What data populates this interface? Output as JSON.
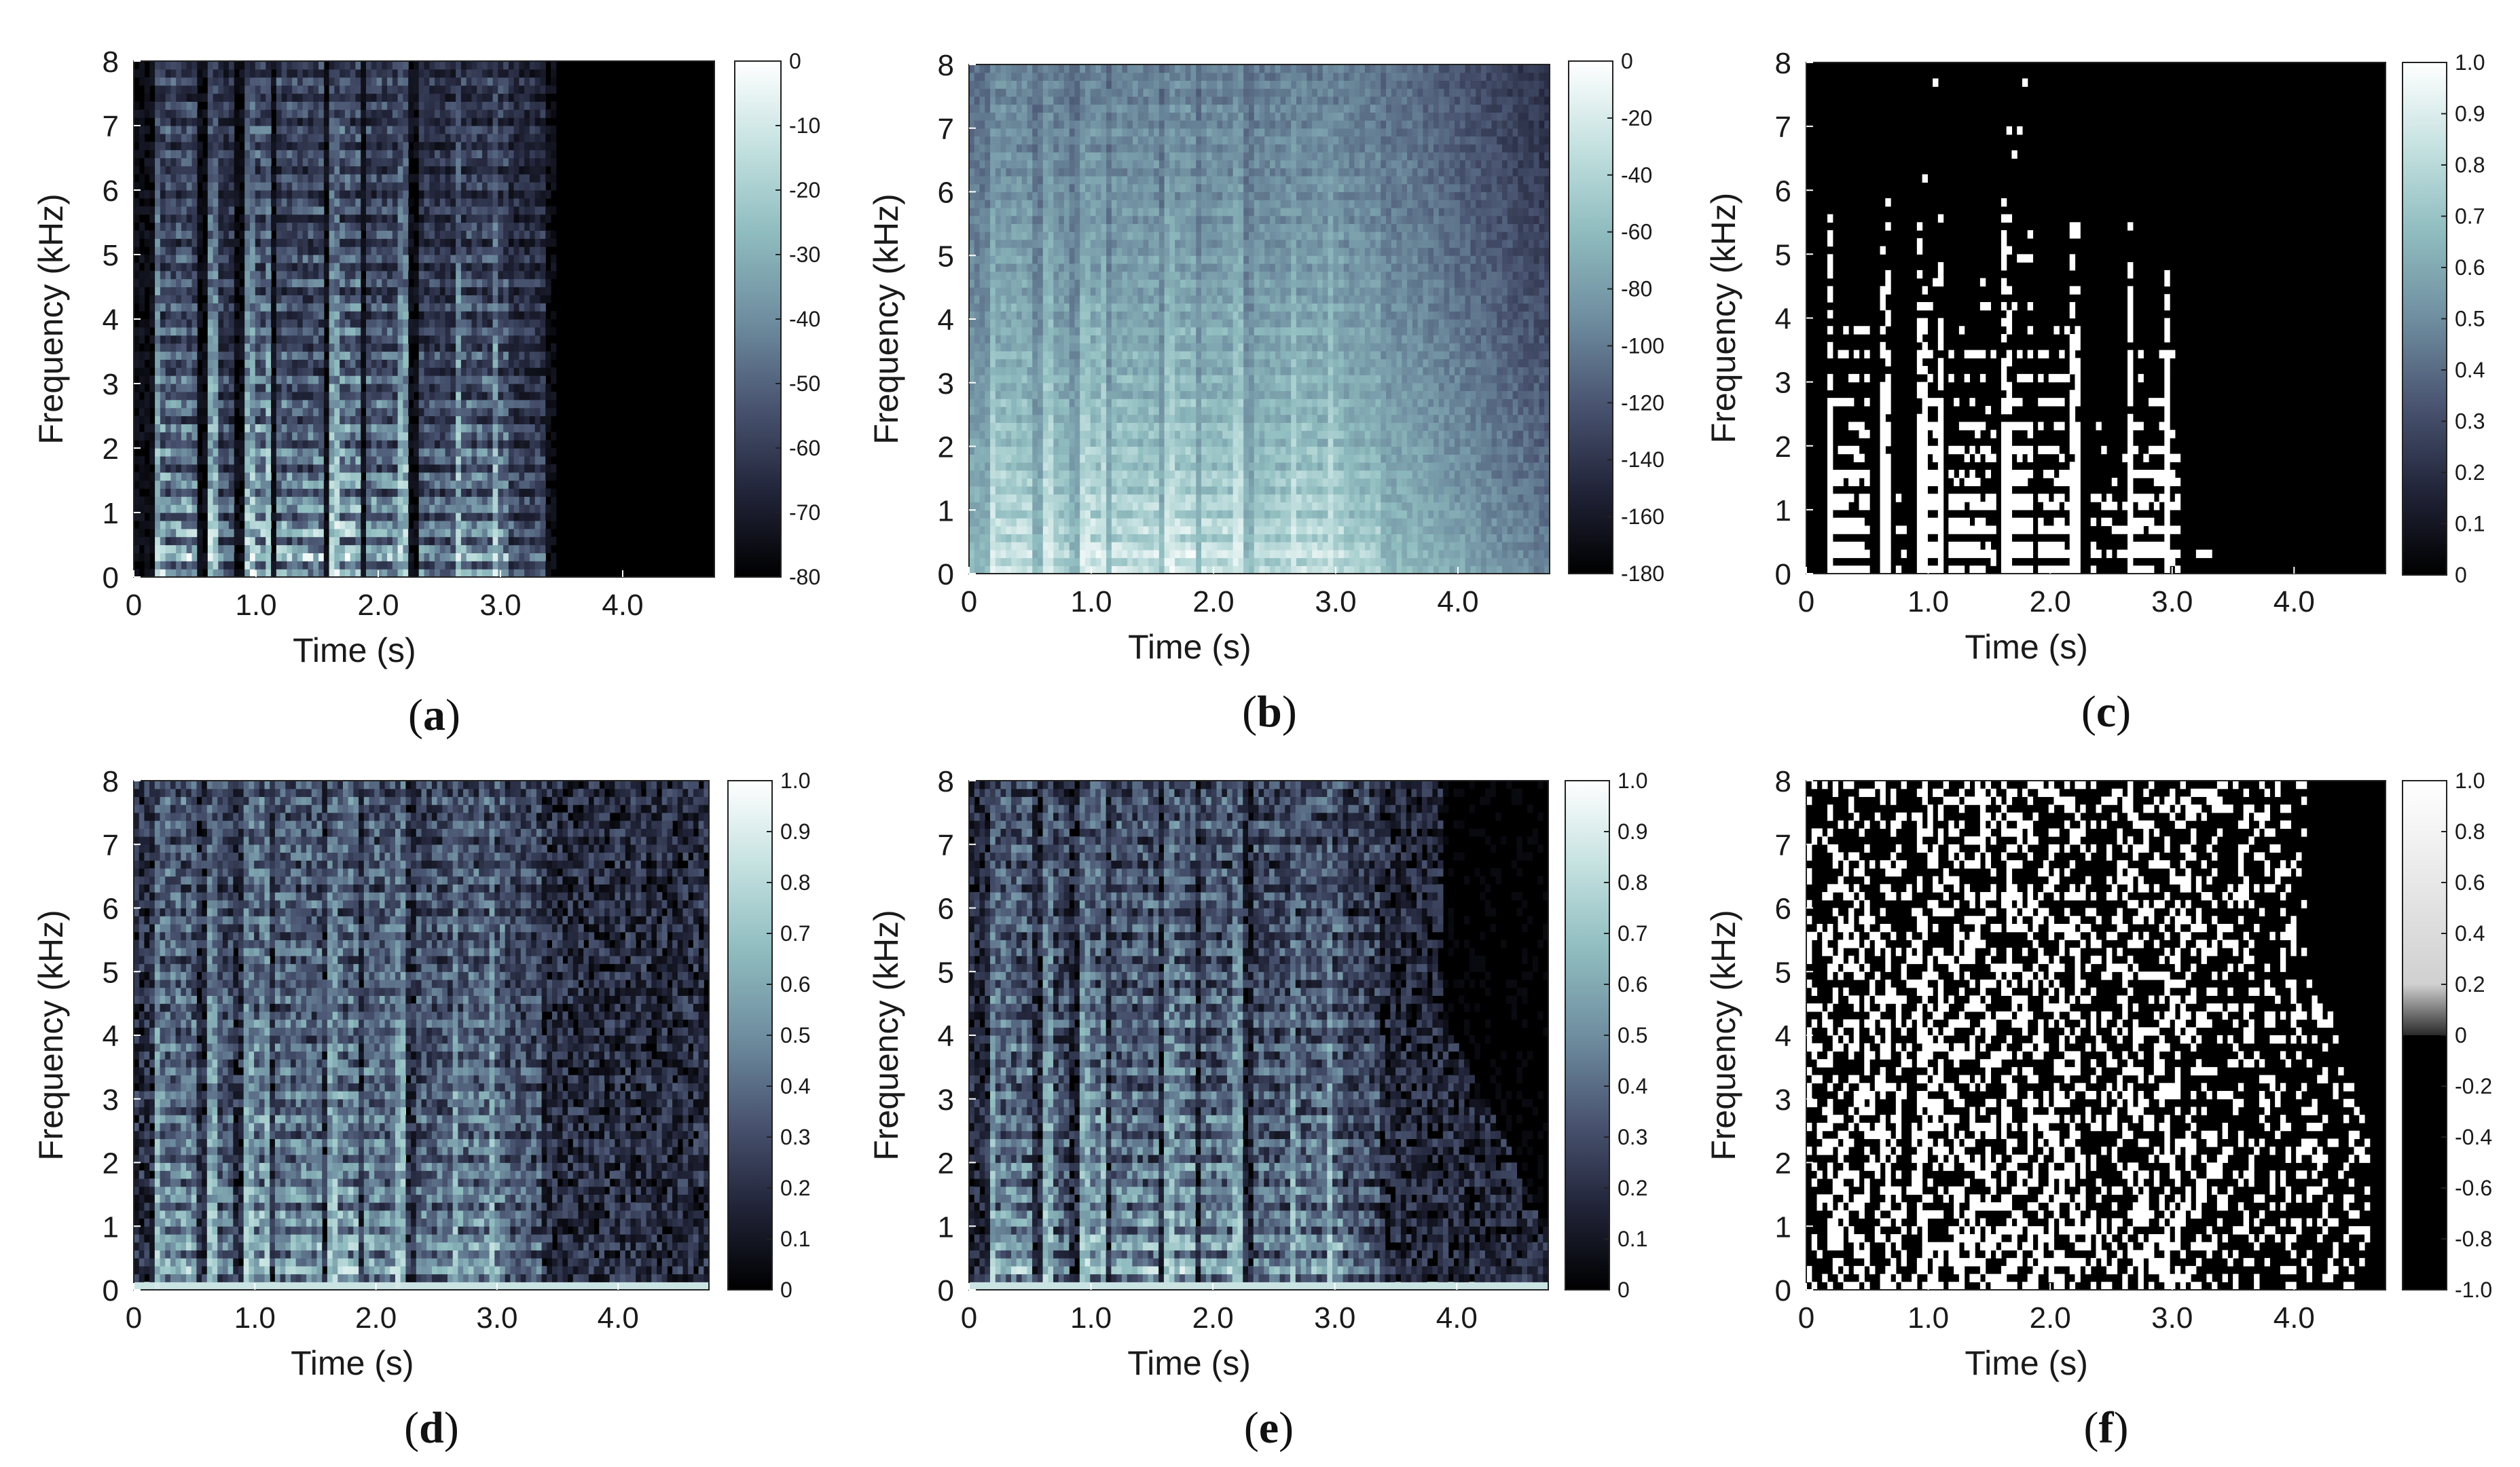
{
  "colors": {
    "colormap": [
      "#000000",
      "#22253a",
      "#4a5572",
      "#6f8ea0",
      "#8fbcbf",
      "#c4e1e0",
      "#ffffff"
    ],
    "text": "#1a1a1a",
    "frame": "#222222"
  },
  "chart_data": [
    {
      "type": "heatmap",
      "caption": "(a)",
      "xlabel": "Time (s)",
      "ylabel": "Frequency (kHz)",
      "xlim": [
        0,
        4.75
      ],
      "ylim": [
        0,
        8
      ],
      "xticks": [
        0,
        1.0,
        2.0,
        3.0,
        4.0
      ],
      "xtick_labels": [
        "0",
        "1.0",
        "2.0",
        "3.0",
        "4.0"
      ],
      "yticks": [
        0,
        1,
        2,
        3,
        4,
        5,
        6,
        7,
        8
      ],
      "ytick_labels": [
        "0",
        "1",
        "2",
        "3",
        "4",
        "5",
        "6",
        "7",
        "8"
      ],
      "colorbar": {
        "range": [
          -80,
          0
        ],
        "ticks": [
          0,
          -10,
          -20,
          -30,
          -40,
          -50,
          -60,
          -70,
          -80
        ],
        "tick_labels": [
          "0",
          "-10",
          "-20",
          "-30",
          "-40",
          "-50",
          "-60",
          "-70",
          "-80"
        ]
      },
      "pattern": "speech-spectrogram"
    },
    {
      "type": "heatmap",
      "caption": "(b)",
      "xlabel": "Time (s)",
      "ylabel": "Frequency (kHz)",
      "xlim": [
        0,
        4.75
      ],
      "ylim": [
        0,
        8
      ],
      "xticks": [
        0,
        1.0,
        2.0,
        3.0,
        4.0
      ],
      "xtick_labels": [
        "0",
        "1.0",
        "2.0",
        "3.0",
        "4.0"
      ],
      "yticks": [
        0,
        1,
        2,
        3,
        4,
        5,
        6,
        7,
        8
      ],
      "ytick_labels": [
        "0",
        "1",
        "2",
        "3",
        "4",
        "5",
        "6",
        "7",
        "8"
      ],
      "colorbar": {
        "range": [
          -180,
          0
        ],
        "ticks": [
          0,
          -20,
          -40,
          -60,
          -80,
          -100,
          -120,
          -140,
          -160,
          -180
        ],
        "tick_labels": [
          "0",
          "-20",
          "-40",
          "-60",
          "-80",
          "-100",
          "-120",
          "-140",
          "-160",
          "-180"
        ]
      },
      "pattern": "noisy-spectrogram"
    },
    {
      "type": "heatmap",
      "caption": "(c)",
      "xlabel": "Time (s)",
      "ylabel": "Frequency (kHz)",
      "xlim": [
        0,
        4.75
      ],
      "ylim": [
        0,
        8
      ],
      "xticks": [
        0,
        1.0,
        2.0,
        3.0,
        4.0
      ],
      "xtick_labels": [
        "0",
        "1.0",
        "2.0",
        "3.0",
        "4.0"
      ],
      "yticks": [
        0,
        1,
        2,
        3,
        4,
        5,
        6,
        7,
        8
      ],
      "ytick_labels": [
        "0",
        "1",
        "2",
        "3",
        "4",
        "5",
        "6",
        "7",
        "8"
      ],
      "colorbar": {
        "range": [
          0,
          1.0
        ],
        "ticks": [
          1.0,
          0.9,
          0.8,
          0.7,
          0.6,
          0.5,
          0.4,
          0.3,
          0.2,
          0.1,
          0
        ],
        "tick_labels": [
          "1.0",
          "0.9",
          "0.8",
          "0.7",
          "0.6",
          "0.5",
          "0.4",
          "0.3",
          "0.2",
          "0.1",
          "0"
        ]
      },
      "pattern": "binary-mask"
    },
    {
      "type": "heatmap",
      "caption": "(d)",
      "xlabel": "Time (s)",
      "ylabel": "Frequency (kHz)",
      "xlim": [
        0,
        4.75
      ],
      "ylim": [
        0,
        8
      ],
      "xticks": [
        0,
        1.0,
        2.0,
        3.0,
        4.0
      ],
      "xtick_labels": [
        "0",
        "1.0",
        "2.0",
        "3.0",
        "4.0"
      ],
      "yticks": [
        0,
        1,
        2,
        3,
        4,
        5,
        6,
        7,
        8
      ],
      "ytick_labels": [
        "0",
        "1",
        "2",
        "3",
        "4",
        "5",
        "6",
        "7",
        "8"
      ],
      "colorbar": {
        "range": [
          0,
          1.0
        ],
        "ticks": [
          1.0,
          0.9,
          0.8,
          0.7,
          0.6,
          0.5,
          0.4,
          0.3,
          0.2,
          0.1,
          0
        ],
        "tick_labels": [
          "1.0",
          "0.9",
          "0.8",
          "0.7",
          "0.6",
          "0.5",
          "0.4",
          "0.3",
          "0.2",
          "0.1",
          "0"
        ]
      },
      "pattern": "ratio-mask"
    },
    {
      "type": "heatmap",
      "caption": "(e)",
      "xlabel": "Time (s)",
      "ylabel": "Frequency (kHz)",
      "xlim": [
        0,
        4.75
      ],
      "ylim": [
        0,
        8
      ],
      "xticks": [
        0,
        1.0,
        2.0,
        3.0,
        4.0
      ],
      "xtick_labels": [
        "0",
        "1.0",
        "2.0",
        "3.0",
        "4.0"
      ],
      "yticks": [
        0,
        1,
        2,
        3,
        4,
        5,
        6,
        7,
        8
      ],
      "ytick_labels": [
        "0",
        "1",
        "2",
        "3",
        "4",
        "5",
        "6",
        "7",
        "8"
      ],
      "colorbar": {
        "range": [
          0,
          1.0
        ],
        "ticks": [
          1.0,
          0.9,
          0.8,
          0.7,
          0.6,
          0.5,
          0.4,
          0.3,
          0.2,
          0.1,
          0
        ],
        "tick_labels": [
          "1.0",
          "0.9",
          "0.8",
          "0.7",
          "0.6",
          "0.5",
          "0.4",
          "0.3",
          "0.2",
          "0.1",
          "0"
        ]
      },
      "pattern": "ratio-mask-fade"
    },
    {
      "type": "heatmap",
      "caption": "(f)",
      "xlabel": "Time (s)",
      "ylabel": "Frequency (kHz)",
      "xlim": [
        0,
        4.75
      ],
      "ylim": [
        0,
        8
      ],
      "xticks": [
        0,
        1.0,
        2.0,
        3.0,
        4.0
      ],
      "xtick_labels": [
        "0",
        "1.0",
        "2.0",
        "3.0",
        "4.0"
      ],
      "yticks": [
        0,
        1,
        2,
        3,
        4,
        5,
        6,
        7,
        8
      ],
      "ytick_labels": [
        "0",
        "1",
        "2",
        "3",
        "4",
        "5",
        "6",
        "7",
        "8"
      ],
      "colorbar": {
        "range": [
          -1.0,
          1.0
        ],
        "ticks": [
          1.0,
          0.8,
          0.6,
          0.4,
          0.2,
          0,
          -0.2,
          -0.4,
          -0.6,
          -0.8,
          -1.0
        ],
        "tick_labels": [
          "1.0",
          "0.8",
          "0.6",
          "0.4",
          "0.2",
          "0",
          "-0.2",
          "-0.4",
          "-0.6",
          "-0.8",
          "-1.0"
        ]
      },
      "pattern": "phase-mask"
    }
  ]
}
